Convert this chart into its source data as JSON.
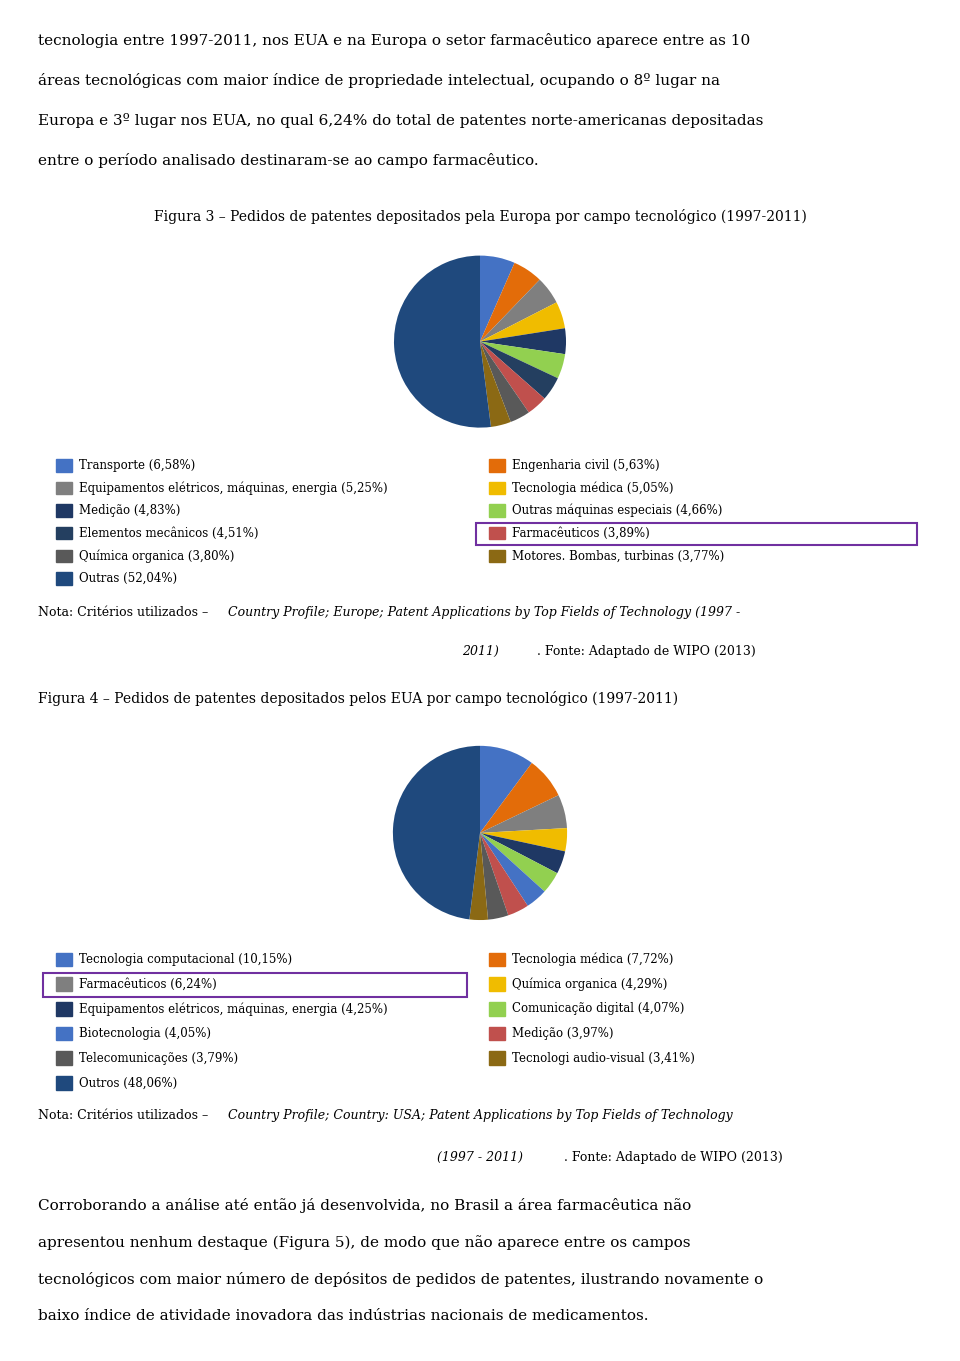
{
  "fig1_title": "Figura 3 – Pedidos de patentes depositados pela Europa por campo tecnológico (1997-2011)",
  "fig1_slices": [
    6.58,
    5.63,
    5.25,
    5.05,
    4.83,
    4.66,
    4.51,
    3.89,
    3.8,
    3.77,
    52.04
  ],
  "fig1_labels": [
    "Transporte (6,58%)",
    "Engenharia civil (5,63%)",
    "Equipamentos elétricos, máquinas, energia (5,25%)",
    "Tecnologia médica (5,05%)",
    "Medição (4,83%)",
    "Outras máquinas especiais (4,66%)",
    "Elementos mecânicos (4,51%)",
    "Farmacêuticos (3,89%)",
    "Química organica (3,80%)",
    "Motores. Bombas, turbinas (3,77%)",
    "Outras (52,04%)"
  ],
  "fig1_colors": [
    "#4472C4",
    "#E36C09",
    "#7F7F7F",
    "#F0BC00",
    "#1F3864",
    "#92D050",
    "#243F60",
    "#C0504D",
    "#595959",
    "#8B6914",
    "#1F497D"
  ],
  "fig1_highlight_idx": 7,
  "fig2_title": "Figura 4 – Pedidos de patentes depositados pelos EUA por campo tecnológico (1997-2011)",
  "fig2_slices": [
    10.15,
    7.72,
    6.24,
    4.29,
    4.25,
    4.07,
    4.05,
    3.97,
    3.79,
    3.41,
    48.06
  ],
  "fig2_labels": [
    "Tecnologia computacional (10,15%)",
    "Tecnologia médica (7,72%)",
    "Farmacêuticos (6,24%)",
    "Química organica (4,29%)",
    "Equipamentos elétricos, máquinas, energia (4,25%)",
    "Comunicação digital (4,07%)",
    "Biotecnologia (4,05%)",
    "Medição (3,97%)",
    "Telecomunicações (3,79%)",
    "Tecnologi audio-visual (3,41%)",
    "Outros (48,06%)"
  ],
  "fig2_colors": [
    "#4472C4",
    "#E36C09",
    "#7F7F7F",
    "#F0BC00",
    "#1F3864",
    "#92D050",
    "#4472C4",
    "#C0504D",
    "#595959",
    "#8B6914",
    "#1F497D"
  ],
  "fig2_highlight_idx": 2,
  "text_top_lines": [
    "tecnologia entre 1997-2011, nos EUA e na Europa o setor farmacêutico aparece entre as 10",
    "áreas tecnológicas com maior índice de propriedade intelectual, ocupando o 8º lugar na",
    "Europa e 3º lugar nos EUA, no qual 6,24% do total de patentes norte-americanas depositadas",
    "entre o período analisado destinaram-se ao campo farmacêutico."
  ],
  "text_bottom_lines": [
    "Corroborando a análise até então já desenvolvida, no Brasil a área farmacêutica não",
    "apresentou nenhum destaque (Figura 5), de modo que não aparece entre os campos",
    "tecnológicos com maior número de depósitos de pedidos de patentes, ilustrando novamente o",
    "baixo índice de atividade inovadora das indústrias nacionais de medicamentos."
  ],
  "note1_plain": "Nota: Critérios utilizados – ",
  "note1_italic": "Country Profile; Europe; Patent Applications by Top Fields of Technology (1997 -\n2011)",
  "note1_end": ". Fonte: Adaptado de WIPO (2013)",
  "note2_plain": "Nota: Critérios utilizados – ",
  "note2_italic": "Country Profile; Country: USA; Patent Applications by Top Fields of Technology\n(1997 - 2011)",
  "note2_end": ". Fonte: Adaptado de WIPO (2013)",
  "background_color": "#FFFFFF",
  "text_color": "#000000",
  "highlight_color": "#7030A0"
}
